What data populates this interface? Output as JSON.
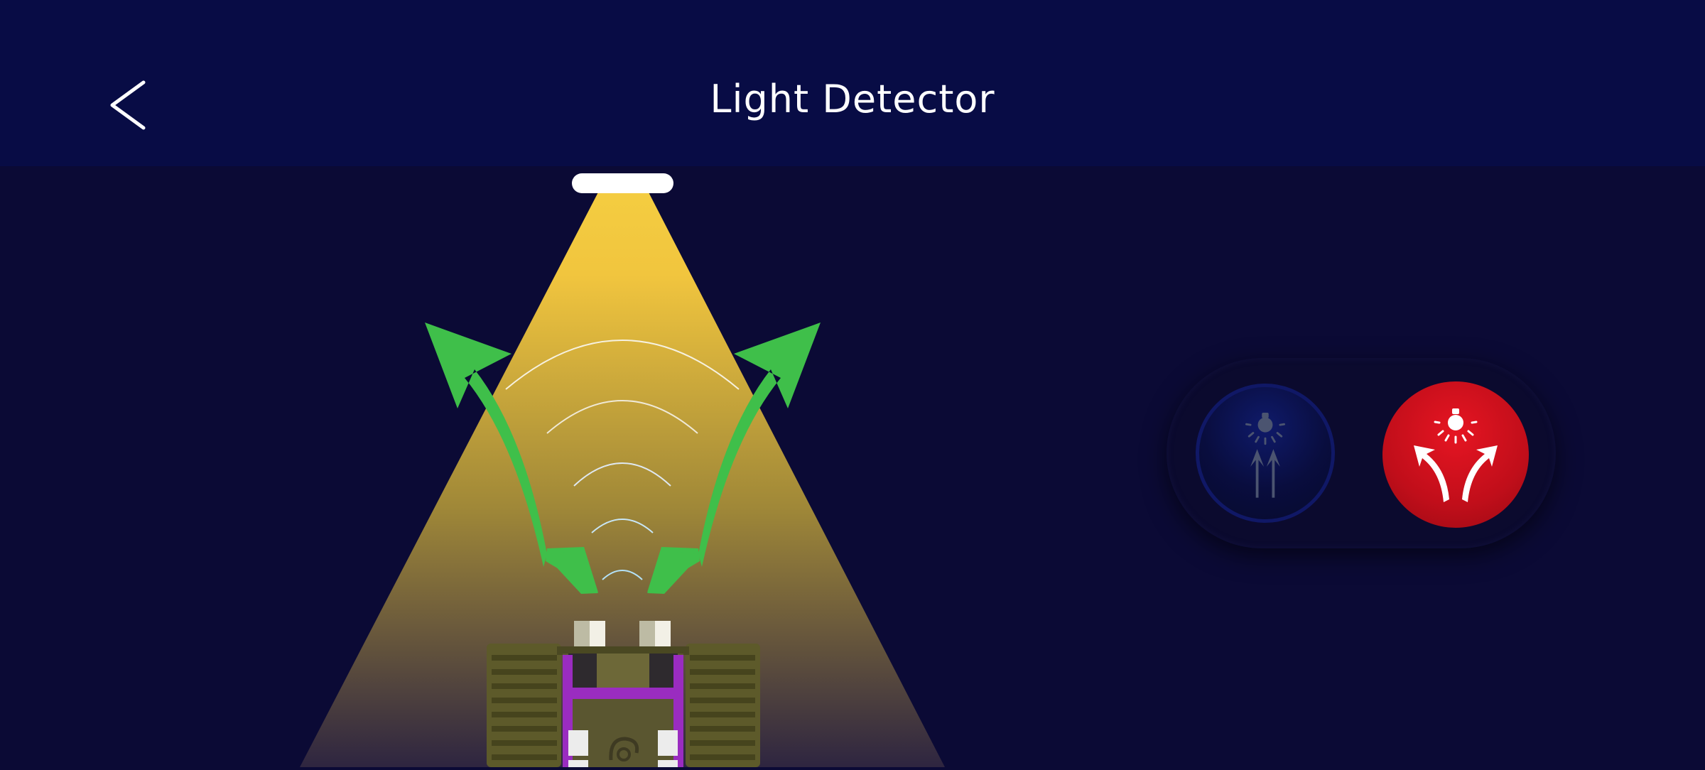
{
  "header": {
    "title": "Light Detector",
    "back_icon": "chevron-left-icon"
  },
  "scene": {
    "light_source": "lamp-icon",
    "robot": "robot-car",
    "active_mode": "light-avoid"
  },
  "modes": [
    {
      "id": "light-follow",
      "icon": "light-follow-icon",
      "active": false
    },
    {
      "id": "light-avoid",
      "icon": "light-avoid-icon",
      "active": true
    }
  ],
  "colors": {
    "header_bg": "#080c45",
    "page_bg": "#0b0a35",
    "light_beam": "#f2c53f",
    "arrow_green": "#3fbf4a",
    "active_mode": "#d4111d",
    "robot_frame": "#9a2cc0"
  }
}
